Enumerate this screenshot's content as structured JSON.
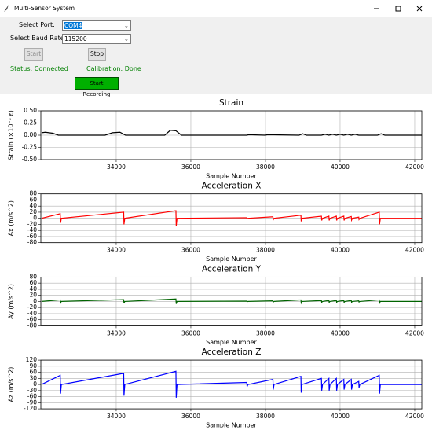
{
  "window": {
    "title": "Multi-Sensor System"
  },
  "controls": {
    "port_label": "Select Port:",
    "port_value": "COM4",
    "baud_label": "Select Baud Rate:",
    "baud_value": "115200",
    "start_button": "Start",
    "stop_button": "Stop",
    "status": "Status: Connected",
    "calibration": "Calibration: Done",
    "record_button": "Start Recording"
  },
  "chart_data": [
    {
      "type": "line",
      "title": "Strain",
      "x_label": "Sample Number",
      "y_label": "Strain (×10⁻³ ε)",
      "color": "#000000",
      "grid": true,
      "xlim": [
        31980,
        42190
      ],
      "xticks": [
        34000,
        36000,
        38000,
        40000,
        42000
      ],
      "ylim": [
        -0.5,
        0.5
      ],
      "yticks": [
        {
          "value": -0.5,
          "label": "-0.50"
        },
        {
          "value": -0.25,
          "label": "-0.25"
        },
        {
          "value": 0,
          "label": "0.00"
        },
        {
          "value": 0.25,
          "label": "0.25"
        },
        {
          "value": 0.5,
          "label": "0.50"
        }
      ],
      "x": [
        32000,
        32100,
        32300,
        32450,
        33700,
        33900,
        34100,
        34250,
        35300,
        35450,
        35600,
        35750,
        37500,
        37550,
        38000,
        38050,
        38900,
        39000,
        39100,
        39500,
        39600,
        39700,
        39800,
        39900,
        40000,
        40100,
        40200,
        40300,
        40400,
        40500,
        40600,
        41000,
        41100,
        41200,
        42200
      ],
      "values": [
        0.05,
        0.06,
        0.04,
        0,
        0,
        0.05,
        0.06,
        0,
        0,
        0.1,
        0.09,
        0,
        0,
        0.01,
        0,
        0.01,
        0,
        0.03,
        0,
        0,
        0.02,
        0,
        0.02,
        0,
        0.02,
        0,
        0.02,
        0,
        0.02,
        0,
        0,
        0,
        0.03,
        0,
        0
      ]
    },
    {
      "type": "line",
      "title": "Acceleration X",
      "x_label": "Sample Number",
      "y_label": "Ax (m/s^2)",
      "color": "#ff0000",
      "grid": true,
      "xlim": [
        31980,
        42190
      ],
      "xticks": [
        34000,
        36000,
        38000,
        40000,
        42000
      ],
      "ylim": [
        -80,
        80
      ],
      "yticks": [
        -80,
        -60,
        -40,
        -20,
        0,
        20,
        40,
        60,
        80
      ],
      "x": [
        32000,
        32500,
        32508,
        32530,
        34200,
        34208,
        34230,
        35600,
        35608,
        35630,
        37500,
        37508,
        37530,
        38200,
        38208,
        38230,
        38950,
        38958,
        38980,
        39500,
        39508,
        39530,
        39700,
        39708,
        39730,
        39900,
        39908,
        39930,
        40100,
        40108,
        40130,
        40300,
        40308,
        40330,
        40500,
        40508,
        40530,
        41050,
        41058,
        41080,
        42200
      ],
      "values": [
        0,
        15,
        -15,
        0,
        20,
        -20,
        0,
        25,
        -25,
        0,
        2,
        -2,
        0,
        5,
        -5,
        0,
        10,
        -10,
        0,
        7,
        -7,
        0,
        7,
        -7,
        0,
        7,
        -7,
        0,
        7,
        -7,
        0,
        6,
        -6,
        0,
        4,
        -4,
        0,
        20,
        -20,
        0,
        0
      ]
    },
    {
      "type": "line",
      "title": "Acceleration Y",
      "x_label": "Sample Number",
      "y_label": "Ay (m/s^2)",
      "color": "#006400",
      "grid": true,
      "xlim": [
        31980,
        42190
      ],
      "xticks": [
        34000,
        36000,
        38000,
        40000,
        42000
      ],
      "ylim": [
        -80,
        80
      ],
      "yticks": [
        -80,
        -60,
        -40,
        -20,
        0,
        20,
        40,
        60,
        80
      ],
      "x": [
        32000,
        32500,
        32508,
        32530,
        34200,
        34208,
        34230,
        35600,
        35608,
        35630,
        37500,
        37508,
        37530,
        38200,
        38208,
        38230,
        38950,
        38958,
        38980,
        39500,
        39508,
        39530,
        39700,
        39708,
        39730,
        39900,
        39908,
        39930,
        40100,
        40108,
        40130,
        40300,
        40308,
        40330,
        40500,
        40508,
        40530,
        41050,
        41058,
        41080,
        42200
      ],
      "values": [
        0,
        5,
        -5,
        0,
        6,
        -6,
        0,
        8,
        -8,
        0,
        1,
        -1,
        0,
        2,
        -2,
        0,
        5,
        -5,
        0,
        3,
        -3,
        0,
        3,
        -3,
        0,
        3,
        -3,
        0,
        3,
        -3,
        0,
        3,
        -3,
        0,
        2,
        -2,
        0,
        5,
        -5,
        0,
        0
      ]
    },
    {
      "type": "line",
      "title": "Acceleration Z",
      "x_label": "Sample Number",
      "y_label": "Az (m/s^2)",
      "color": "#0000ff",
      "grid": true,
      "xlim": [
        31980,
        42190
      ],
      "xticks": [
        34000,
        36000,
        38000,
        40000,
        42000
      ],
      "ylim": [
        -120,
        120
      ],
      "yticks": [
        -120,
        -90,
        -60,
        -30,
        0,
        30,
        60,
        90,
        120
      ],
      "x": [
        32000,
        32500,
        32508,
        32530,
        34200,
        34208,
        34230,
        35600,
        35608,
        35630,
        37500,
        37508,
        37530,
        38200,
        38208,
        38230,
        38950,
        38958,
        38980,
        39500,
        39508,
        39530,
        39700,
        39708,
        39730,
        39900,
        39908,
        39930,
        40100,
        40108,
        40130,
        40300,
        40308,
        40330,
        40500,
        40508,
        40530,
        41050,
        41058,
        41080,
        42200
      ],
      "values": [
        0,
        45,
        -45,
        0,
        55,
        -55,
        0,
        65,
        -65,
        0,
        10,
        -10,
        0,
        25,
        -25,
        0,
        40,
        -40,
        0,
        30,
        -30,
        0,
        30,
        -30,
        0,
        30,
        -30,
        0,
        25,
        -25,
        0,
        25,
        -25,
        0,
        15,
        -15,
        0,
        45,
        -45,
        0,
        0
      ]
    }
  ]
}
